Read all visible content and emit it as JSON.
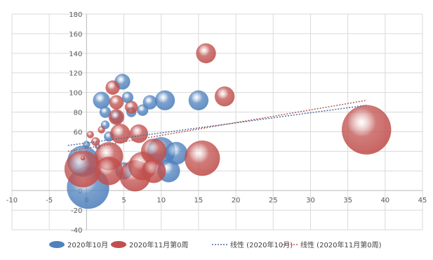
{
  "chart_data": {
    "type": "scatter",
    "subtype": "bubble",
    "title": "",
    "xlabel": "",
    "ylabel": "",
    "xlim": [
      -10,
      45
    ],
    "ylim": [
      -40,
      180
    ],
    "x_ticks": [
      -10,
      -5,
      0,
      5,
      10,
      15,
      20,
      25,
      30,
      35,
      40,
      45
    ],
    "y_ticks": [
      -40,
      -20,
      0,
      20,
      40,
      60,
      80,
      100,
      120,
      140,
      160,
      180
    ],
    "grid": "vertical and horizontal",
    "legend_position": "bottom",
    "colors": {
      "series_blue": "#4f81bd",
      "series_red": "#c0504d",
      "trend_blue": "#4f6fa0",
      "trend_red": "#b55a5a"
    },
    "legend": [
      {
        "label": "2020年10月",
        "kind": "bubble",
        "color": "#4f81bd"
      },
      {
        "label": "2020年11月第0周",
        "kind": "bubble",
        "color": "#c0504d"
      },
      {
        "label": "线性 (2020年10月)",
        "kind": "trend",
        "color": "#4f6fa0"
      },
      {
        "label": "线性 (2020年11月第0周)",
        "kind": "trend",
        "color": "#b55a5a"
      }
    ],
    "series": [
      {
        "name": "2020年10月",
        "color": "#4f81bd",
        "points": [
          {
            "x": 0.2,
            "y": 3,
            "r": 30
          },
          {
            "x": -0.5,
            "y": 30,
            "r": 22
          },
          {
            "x": 0,
            "y": 47,
            "r": 5
          },
          {
            "x": 1.5,
            "y": 45,
            "r": 4
          },
          {
            "x": 2,
            "y": 92,
            "r": 12
          },
          {
            "x": 2.5,
            "y": 80,
            "r": 8
          },
          {
            "x": 2.5,
            "y": 67,
            "r": 6
          },
          {
            "x": 3,
            "y": 55,
            "r": 7
          },
          {
            "x": 4.8,
            "y": 111,
            "r": 11
          },
          {
            "x": 5.5,
            "y": 95,
            "r": 8
          },
          {
            "x": 4,
            "y": 75,
            "r": 9
          },
          {
            "x": 6,
            "y": 80,
            "r": 7
          },
          {
            "x": 7.5,
            "y": 82,
            "r": 8
          },
          {
            "x": 8.5,
            "y": 90,
            "r": 10
          },
          {
            "x": 10.5,
            "y": 92,
            "r": 14
          },
          {
            "x": 10,
            "y": 40,
            "r": 20
          },
          {
            "x": 12,
            "y": 38,
            "r": 16
          },
          {
            "x": 11,
            "y": 20,
            "r": 16
          },
          {
            "x": 15,
            "y": 92,
            "r": 14
          },
          {
            "x": 5,
            "y": 20,
            "r": 12
          }
        ],
        "trendline": {
          "x_start": -2.5,
          "y_start": 46,
          "x_end": 37.5,
          "y_end": 87
        }
      },
      {
        "name": "2020年11月第0周",
        "color": "#c0504d",
        "points": [
          {
            "x": -0.5,
            "y": 22,
            "r": 26
          },
          {
            "x": 0.5,
            "y": 57,
            "r": 5
          },
          {
            "x": 1.2,
            "y": 50,
            "r": 6
          },
          {
            "x": 2,
            "y": 62,
            "r": 5
          },
          {
            "x": -0.5,
            "y": 33,
            "r": 3
          },
          {
            "x": 3.5,
            "y": 105,
            "r": 10
          },
          {
            "x": 4,
            "y": 90,
            "r": 10
          },
          {
            "x": 4,
            "y": 75,
            "r": 11
          },
          {
            "x": 4.5,
            "y": 58,
            "r": 14
          },
          {
            "x": 3,
            "y": 35,
            "r": 20
          },
          {
            "x": 3,
            "y": 20,
            "r": 20
          },
          {
            "x": 6,
            "y": 85,
            "r": 9
          },
          {
            "x": 7,
            "y": 58,
            "r": 13
          },
          {
            "x": 6.5,
            "y": 15,
            "r": 22
          },
          {
            "x": 7.5,
            "y": 25,
            "r": 20
          },
          {
            "x": 9,
            "y": 20,
            "r": 17
          },
          {
            "x": 9,
            "y": 40,
            "r": 18
          },
          {
            "x": 15.5,
            "y": 33,
            "r": 25
          },
          {
            "x": 16,
            "y": 140,
            "r": 14
          },
          {
            "x": 18.5,
            "y": 96,
            "r": 14
          },
          {
            "x": 37.5,
            "y": 62,
            "r": 35
          }
        ],
        "trendline": {
          "x_start": -2.5,
          "y_start": 40,
          "x_end": 37.5,
          "y_end": 92
        }
      }
    ]
  }
}
